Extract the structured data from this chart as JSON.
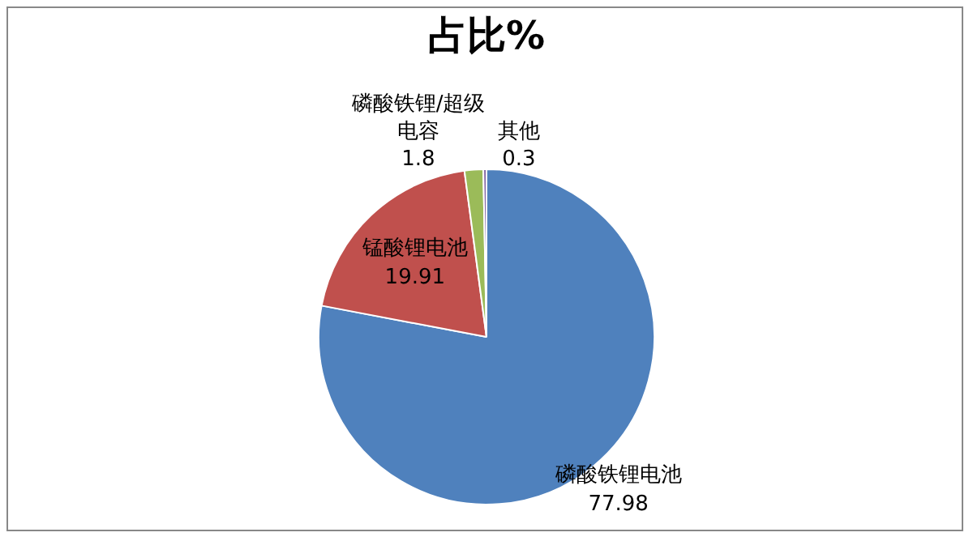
{
  "chart_data": {
    "type": "pie",
    "title": "占比%",
    "categories": [
      "磷酸铁锂电池",
      "锰酸锂电池",
      "磷酸铁锂/超级电容",
      "其他"
    ],
    "values": [
      77.98,
      19.91,
      1.8,
      0.3
    ],
    "colors": [
      "#4f81bd",
      "#c0504d",
      "#9bbb59",
      "#8064a2"
    ],
    "data_labels": true
  }
}
